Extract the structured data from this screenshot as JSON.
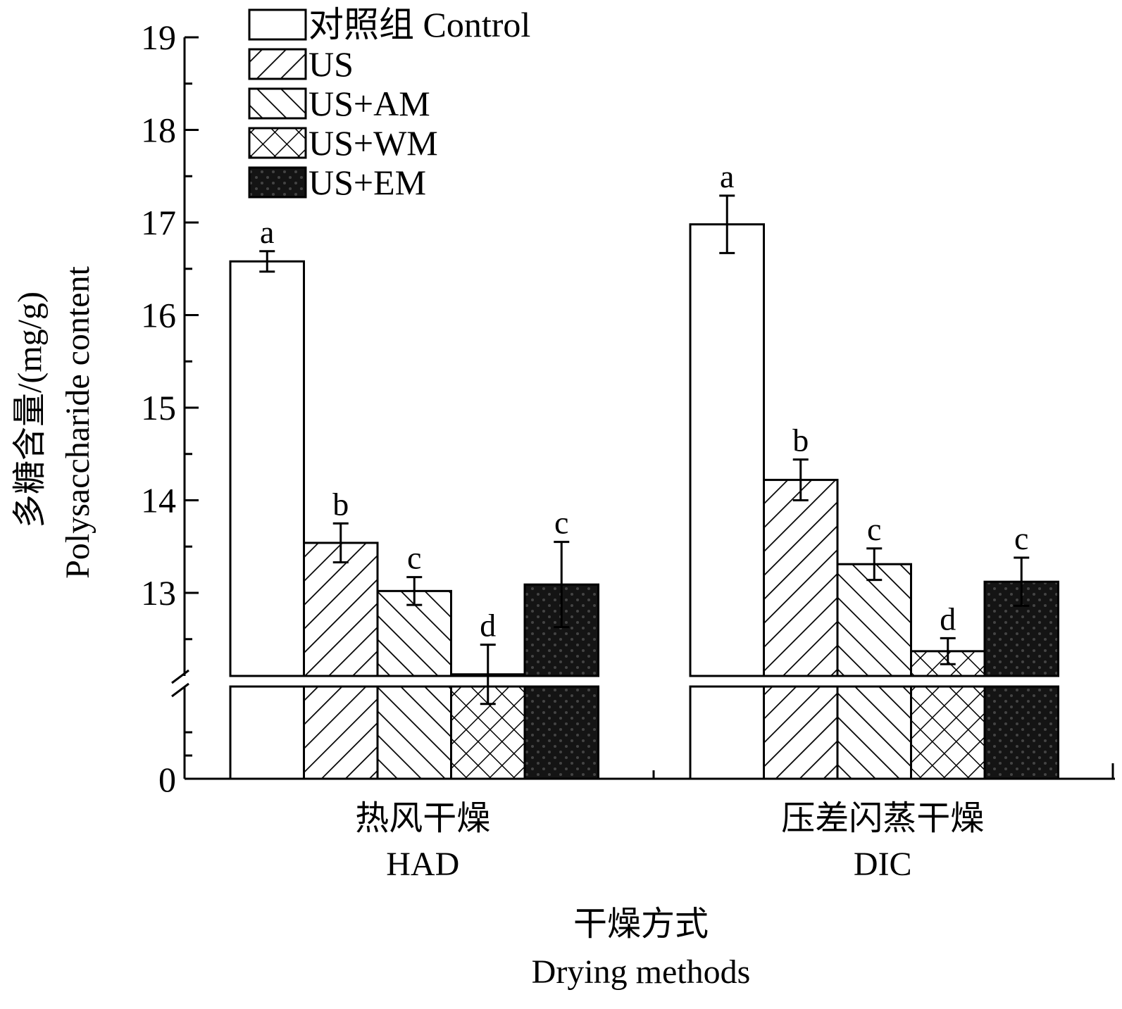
{
  "chart_data": {
    "type": "bar",
    "xlabel_cn": "干燥方式",
    "xlabel_en": "Drying methods",
    "ylabel_cn": "多糖含量/(mg/g)",
    "ylabel_en": "Polysaccharide content",
    "categories": [
      {
        "cn": "热风干燥",
        "en": "HAD"
      },
      {
        "cn": "压差闪蒸干燥",
        "en": "DIC"
      }
    ],
    "y_axis": {
      "break": true,
      "lower_ticks": [
        "0"
      ],
      "upper_range": [
        12,
        19
      ],
      "upper_ticks": [
        13,
        14,
        15,
        16,
        17,
        18,
        19
      ]
    },
    "series": [
      {
        "name": "对照组 Control",
        "pattern": "open",
        "values": [
          16.58,
          16.98
        ],
        "errors": [
          0.11,
          0.31
        ],
        "labels": [
          "a",
          "a"
        ]
      },
      {
        "name": "US",
        "pattern": "hatch-forward",
        "values": [
          13.54,
          14.22
        ],
        "errors": [
          0.21,
          0.22
        ],
        "labels": [
          "b",
          "b"
        ]
      },
      {
        "name": "US+AM",
        "pattern": "hatch-backward",
        "values": [
          13.02,
          13.31
        ],
        "errors": [
          0.15,
          0.17
        ],
        "labels": [
          "c",
          "c"
        ]
      },
      {
        "name": "US+WM",
        "pattern": "crosshatch",
        "values": [
          12.12,
          12.37
        ],
        "errors": [
          0.32,
          0.14
        ],
        "labels": [
          "d",
          "d"
        ]
      },
      {
        "name": "US+EM",
        "pattern": "dark-dotted",
        "values": [
          13.09,
          13.12
        ],
        "errors": [
          0.46,
          0.26
        ],
        "labels": [
          "c",
          "c"
        ]
      }
    ],
    "legend_position": "top-left",
    "grid": false
  }
}
